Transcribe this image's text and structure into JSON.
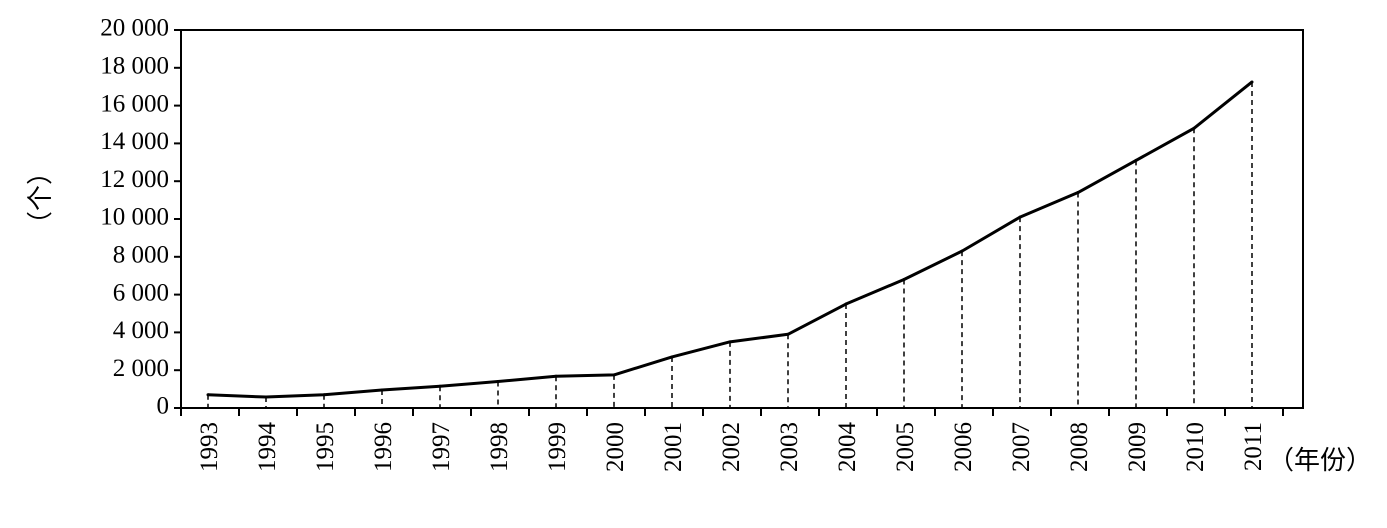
{
  "chart_data": {
    "type": "line",
    "title": "",
    "ylabel": "（个）",
    "xlabel": "（年份）",
    "ylim": [
      0,
      20000
    ],
    "yticks": [
      0,
      2000,
      4000,
      6000,
      8000,
      10000,
      12000,
      14000,
      16000,
      18000,
      20000
    ],
    "ytick_labels": [
      "0",
      "2 000",
      "4 000",
      "6 000",
      "8 000",
      "10 000",
      "12 000",
      "14 000",
      "16 000",
      "18 000",
      "20 000"
    ],
    "x": [
      "1993",
      "1994",
      "1995",
      "1996",
      "1997",
      "1998",
      "1999",
      "2000",
      "2001",
      "2002",
      "2003",
      "2004",
      "2005",
      "2006",
      "2007",
      "2008",
      "2009",
      "2010",
      "2011"
    ],
    "series": [
      {
        "values": [
          700,
          580,
          700,
          950,
          1150,
          1400,
          1680,
          1750,
          2700,
          3500,
          3900,
          5500,
          6800,
          8300,
          10100,
          11400,
          13100,
          14800,
          17250
        ]
      }
    ],
    "grid": false,
    "drop_lines": true,
    "colors": {
      "line": "#000000",
      "axis": "#000000"
    }
  }
}
